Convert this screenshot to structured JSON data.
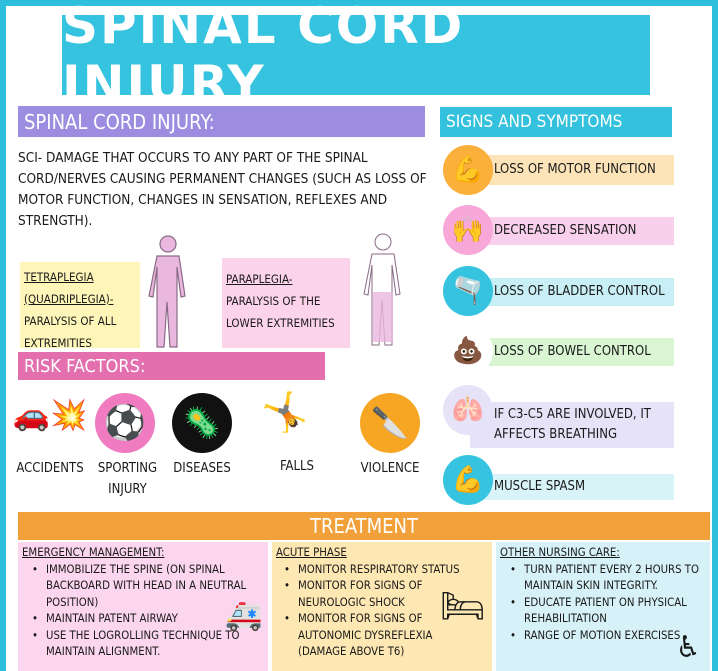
{
  "title": "SPINAL CORD INJURY",
  "definition": {
    "heading": "SPINAL CORD INJURY:",
    "text": "SCI- DAMAGE THAT OCCURS TO ANY PART OF THE SPINAL CORD/NERVES CAUSING PERMANENT CHANGES (SUCH AS LOSS OF MOTOR FUNCTION, CHANGES IN SENSATION, REFLEXES AND STRENGTH)."
  },
  "tetraplegia": {
    "term": "TETRAPLEGIA (QUADRIPLEGIA)-",
    "desc": "PARALYSIS OF ALL EXTREMITIES"
  },
  "paraplegia": {
    "term": "PARAPLEGIA-",
    "desc": "PARALYSIS OF THE LOWER EXTREMITIES"
  },
  "risk": {
    "heading": "RISK FACTORS:",
    "items": [
      {
        "label": "ACCIDENTS",
        "icon": "car-crash-icon"
      },
      {
        "label": "SPORTING INJURY",
        "icon": "soccer-ball-icon"
      },
      {
        "label": "DISEASES",
        "icon": "virus-icon"
      },
      {
        "label": "FALLS",
        "icon": "falling-person-icon"
      },
      {
        "label": "VIOLENCE",
        "icon": "knife-icon"
      }
    ]
  },
  "signs": {
    "heading": "SIGNS AND SYMPTOMS",
    "items": [
      {
        "label": "LOSS OF MOTOR FUNCTION",
        "icon": "arm-icon",
        "color": "#fde3b8"
      },
      {
        "label": "DECREASED SENSATION",
        "icon": "hands-icon",
        "color": "#f8d0ec"
      },
      {
        "label": "LOSS OF BLADDER CONTROL",
        "icon": "bladder-icon",
        "color": "#c8eef6"
      },
      {
        "label": "LOSS OF BOWEL CONTROL",
        "icon": "poop-icon",
        "color": "#d9f5d2"
      },
      {
        "label": "IF C3-C5 ARE INVOLVED, IT AFFECTS BREATHING",
        "icon": "lungs-icon",
        "color": "#e6e2f7"
      },
      {
        "label": "MUSCLE SPASM",
        "icon": "muscle-icon",
        "color": "#d9f4f8"
      }
    ]
  },
  "treatment": {
    "heading": "TREATMENT",
    "emergency": {
      "heading": "EMERGENCY MANAGEMENT:",
      "items": [
        "IMMOBILIZE THE SPINE (ON SPINAL BACKBOARD WITH HEAD IN A NEUTRAL POSITION)",
        "MAINTAIN PATENT AIRWAY",
        "USE THE LOGROLLING TECHNIQUE TO MAINTAIN ALIGNMENT."
      ]
    },
    "acute": {
      "heading": "ACUTE PHASE",
      "items": [
        "MONITOR RESPIRATORY STATUS",
        "MONITOR FOR SIGNS OF NEUROLOGIC SHOCK",
        "MONITOR FOR SIGNS OF AUTONOMIC DYSREFLEXIA (DAMAGE ABOVE T6)"
      ]
    },
    "other": {
      "heading": "OTHER NURSING CARE:",
      "items": [
        "TURN PATIENT EVERY 2 HOURS TO MAINTAIN SKIN INTEGRITY.",
        "EDUCATE PATIENT ON PHYSICAL REHABILITATION",
        "RANGE OF MOTION EXERCISES"
      ]
    }
  },
  "colors": {
    "frame": "#2dbfdc",
    "purple": "#9d8de0",
    "pink": "#e36fae",
    "orange": "#f2a13a"
  }
}
